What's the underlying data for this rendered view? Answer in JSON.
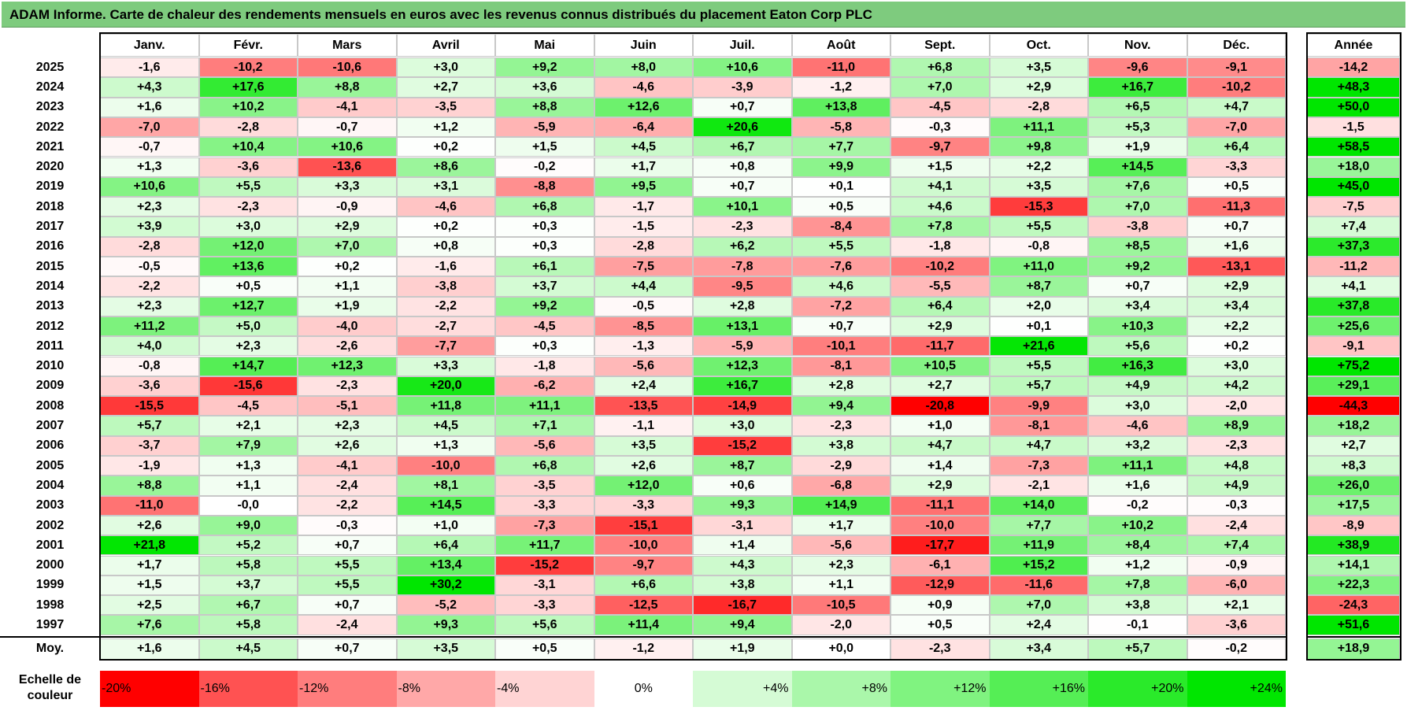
{
  "header": {
    "title": "ADAM Informe. Carte de chaleur des rendements mensuels en euros avec les revenus connus distribués du placement Eaton Corp PLC"
  },
  "chart_data": {
    "type": "heatmap",
    "months": [
      "Janv.",
      "Févr.",
      "Mars",
      "Avril",
      "Mai",
      "Juin",
      "Juil.",
      "Août",
      "Sept.",
      "Oct.",
      "Nov.",
      "Déc."
    ],
    "annual_header": "Année",
    "rows": [
      {
        "year": "2025",
        "values": [
          "-1,6",
          "-10,2",
          "-10,6",
          "+3,0",
          "+9,2",
          "+8,0",
          "+10,6",
          "-11,0",
          "+6,8",
          "+3,5",
          "-9,6",
          "-9,1"
        ],
        "annual": "-14,2"
      },
      {
        "year": "2024",
        "values": [
          "+4,3",
          "+17,6",
          "+8,8",
          "+2,7",
          "+3,6",
          "-4,6",
          "-3,9",
          "-1,2",
          "+7,0",
          "+2,9",
          "+16,7",
          "-10,2"
        ],
        "annual": "+48,3"
      },
      {
        "year": "2023",
        "values": [
          "+1,6",
          "+10,2",
          "-4,1",
          "-3,5",
          "+8,8",
          "+12,6",
          "+0,7",
          "+13,8",
          "-4,5",
          "-2,8",
          "+6,5",
          "+4,7"
        ],
        "annual": "+50,0"
      },
      {
        "year": "2022",
        "values": [
          "-7,0",
          "-2,8",
          "-0,7",
          "+1,2",
          "-5,9",
          "-6,4",
          "+20,6",
          "-5,8",
          "-0,3",
          "+11,1",
          "+5,3",
          "-7,0"
        ],
        "annual": "-1,5"
      },
      {
        "year": "2021",
        "values": [
          "-0,7",
          "+10,4",
          "+10,6",
          "+0,2",
          "+1,5",
          "+4,5",
          "+6,7",
          "+7,7",
          "-9,7",
          "+9,8",
          "+1,9",
          "+6,4"
        ],
        "annual": "+58,5"
      },
      {
        "year": "2020",
        "values": [
          "+1,3",
          "-3,6",
          "-13,6",
          "+8,6",
          "-0,2",
          "+1,7",
          "+0,8",
          "+9,9",
          "+1,5",
          "+2,2",
          "+14,5",
          "-3,3"
        ],
        "annual": "+18,0"
      },
      {
        "year": "2019",
        "values": [
          "+10,6",
          "+5,5",
          "+3,3",
          "+3,1",
          "-8,8",
          "+9,5",
          "+0,7",
          "+0,1",
          "+4,1",
          "+3,5",
          "+7,6",
          "+0,5"
        ],
        "annual": "+45,0"
      },
      {
        "year": "2018",
        "values": [
          "+2,3",
          "-2,3",
          "-0,9",
          "-4,6",
          "+6,8",
          "-1,7",
          "+10,1",
          "+0,5",
          "+4,6",
          "-15,3",
          "+7,0",
          "-11,3"
        ],
        "annual": "-7,5"
      },
      {
        "year": "2017",
        "values": [
          "+3,9",
          "+3,0",
          "+2,9",
          "+0,2",
          "+0,3",
          "-1,5",
          "-2,3",
          "-8,4",
          "+7,8",
          "+5,5",
          "-3,8",
          "+0,7"
        ],
        "annual": "+7,4"
      },
      {
        "year": "2016",
        "values": [
          "-2,8",
          "+12,0",
          "+7,0",
          "+0,8",
          "+0,3",
          "-2,8",
          "+6,2",
          "+5,5",
          "-1,8",
          "-0,8",
          "+8,5",
          "+1,6"
        ],
        "annual": "+37,3"
      },
      {
        "year": "2015",
        "values": [
          "-0,5",
          "+13,6",
          "+0,2",
          "-1,6",
          "+6,1",
          "-7,5",
          "-7,8",
          "-7,6",
          "-10,2",
          "+11,0",
          "+9,2",
          "-13,1"
        ],
        "annual": "-11,2"
      },
      {
        "year": "2014",
        "values": [
          "-2,2",
          "+0,5",
          "+1,1",
          "-3,8",
          "+3,7",
          "+4,4",
          "-9,5",
          "+4,6",
          "-5,5",
          "+8,7",
          "+0,7",
          "+2,9"
        ],
        "annual": "+4,1"
      },
      {
        "year": "2013",
        "values": [
          "+2,3",
          "+12,7",
          "+1,9",
          "-2,2",
          "+9,2",
          "-0,5",
          "+2,8",
          "-7,2",
          "+6,4",
          "+2,0",
          "+3,4",
          "+3,4"
        ],
        "annual": "+37,8"
      },
      {
        "year": "2012",
        "values": [
          "+11,2",
          "+5,0",
          "-4,0",
          "-2,7",
          "-4,5",
          "-8,5",
          "+13,1",
          "+0,7",
          "+2,9",
          "+0,1",
          "+10,3",
          "+2,2"
        ],
        "annual": "+25,6"
      },
      {
        "year": "2011",
        "values": [
          "+4,0",
          "+2,3",
          "-2,6",
          "-7,7",
          "+0,3",
          "-1,3",
          "-5,9",
          "-10,1",
          "-11,7",
          "+21,6",
          "+5,6",
          "+0,2"
        ],
        "annual": "-9,1"
      },
      {
        "year": "2010",
        "values": [
          "-0,8",
          "+14,7",
          "+12,3",
          "+3,3",
          "-1,8",
          "-5,6",
          "+12,3",
          "-8,1",
          "+10,5",
          "+5,5",
          "+16,3",
          "+3,0"
        ],
        "annual": "+75,2"
      },
      {
        "year": "2009",
        "values": [
          "-3,6",
          "-15,6",
          "-2,3",
          "+20,0",
          "-6,2",
          "+2,4",
          "+16,7",
          "+2,8",
          "+2,7",
          "+5,7",
          "+4,9",
          "+4,2"
        ],
        "annual": "+29,1"
      },
      {
        "year": "2008",
        "values": [
          "-15,5",
          "-4,5",
          "-5,1",
          "+11,8",
          "+11,1",
          "-13,5",
          "-14,9",
          "+9,4",
          "-20,8",
          "-9,9",
          "+3,0",
          "-2,0"
        ],
        "annual": "-44,3"
      },
      {
        "year": "2007",
        "values": [
          "+5,7",
          "+2,1",
          "+2,3",
          "+4,5",
          "+7,1",
          "-1,1",
          "+3,0",
          "-2,3",
          "+1,0",
          "-8,1",
          "-4,6",
          "+8,9"
        ],
        "annual": "+18,2"
      },
      {
        "year": "2006",
        "values": [
          "-3,7",
          "+7,9",
          "+2,6",
          "+1,3",
          "-5,6",
          "+3,5",
          "-15,2",
          "+3,8",
          "+4,7",
          "+4,7",
          "+3,2",
          "-2,3"
        ],
        "annual": "+2,7"
      },
      {
        "year": "2005",
        "values": [
          "-1,9",
          "+1,3",
          "-4,1",
          "-10,0",
          "+6,8",
          "+2,6",
          "+8,7",
          "-2,9",
          "+1,4",
          "-7,3",
          "+11,1",
          "+4,8"
        ],
        "annual": "+8,3"
      },
      {
        "year": "2004",
        "values": [
          "+8,8",
          "+1,1",
          "-2,4",
          "+8,1",
          "-3,5",
          "+12,0",
          "+0,6",
          "-6,8",
          "+2,9",
          "-2,1",
          "+1,6",
          "+4,9"
        ],
        "annual": "+26,0"
      },
      {
        "year": "2003",
        "values": [
          "-11,0",
          "-0,0",
          "-2,2",
          "+14,5",
          "-3,3",
          "-3,3",
          "+9,3",
          "+14,9",
          "-11,1",
          "+14,0",
          "-0,2",
          "-0,3"
        ],
        "annual": "+17,5"
      },
      {
        "year": "2002",
        "values": [
          "+2,6",
          "+9,0",
          "-0,3",
          "+1,0",
          "-7,3",
          "-15,1",
          "-3,1",
          "+1,7",
          "-10,0",
          "+7,7",
          "+10,2",
          "-2,4"
        ],
        "annual": "-8,9"
      },
      {
        "year": "2001",
        "values": [
          "+21,8",
          "+5,2",
          "+0,7",
          "+6,4",
          "+11,7",
          "-10,0",
          "+1,4",
          "-5,6",
          "-17,7",
          "+11,9",
          "+8,4",
          "+7,4"
        ],
        "annual": "+38,9"
      },
      {
        "year": "2000",
        "values": [
          "+1,7",
          "+5,8",
          "+5,5",
          "+13,4",
          "-15,2",
          "-9,7",
          "+4,3",
          "+2,3",
          "-6,1",
          "+15,2",
          "+1,2",
          "-0,9"
        ],
        "annual": "+14,1"
      },
      {
        "year": "1999",
        "values": [
          "+1,5",
          "+3,7",
          "+5,5",
          "+30,2",
          "-3,1",
          "+6,6",
          "+3,8",
          "+1,1",
          "-12,9",
          "-11,6",
          "+7,8",
          "-6,0"
        ],
        "annual": "+22,3"
      },
      {
        "year": "1998",
        "values": [
          "+2,5",
          "+6,7",
          "+0,7",
          "-5,2",
          "-3,3",
          "-12,5",
          "-16,7",
          "-10,5",
          "+0,9",
          "+7,0",
          "+3,8",
          "+2,1"
        ],
        "annual": "-24,3"
      },
      {
        "year": "1997",
        "values": [
          "+7,6",
          "+5,8",
          "-2,4",
          "+9,3",
          "+5,6",
          "+11,4",
          "+9,4",
          "-2,0",
          "+0,5",
          "+2,4",
          "-0,1",
          "-3,6"
        ],
        "annual": "+51,6"
      }
    ],
    "average": {
      "label": "Moy.",
      "values": [
        "+1,6",
        "+4,5",
        "+0,7",
        "+3,5",
        "+0,5",
        "-1,2",
        "+1,9",
        "+0,0",
        "-2,3",
        "+3,4",
        "+5,7",
        "-0,2"
      ],
      "annual": "+18,9"
    },
    "scale": {
      "label_line1": "Echelle de",
      "label_line2": "couleur",
      "steps": [
        {
          "label": "-20%",
          "value": -20
        },
        {
          "label": "-16%",
          "value": -16
        },
        {
          "label": "-12%",
          "value": -12
        },
        {
          "label": "-8%",
          "value": -8
        },
        {
          "label": "-4%",
          "value": -4
        },
        {
          "label": "0%",
          "value": 0
        },
        {
          "label": "+4%",
          "value": 4
        },
        {
          "label": "+8%",
          "value": 8
        },
        {
          "label": "+12%",
          "value": 12
        },
        {
          "label": "+16%",
          "value": 16
        },
        {
          "label": "+20%",
          "value": 20
        },
        {
          "label": "+24%",
          "value": 24
        }
      ]
    },
    "colors": {
      "negative_max": "#ff0000",
      "neutral": "#ffffff",
      "positive_max": "#00e600"
    }
  }
}
